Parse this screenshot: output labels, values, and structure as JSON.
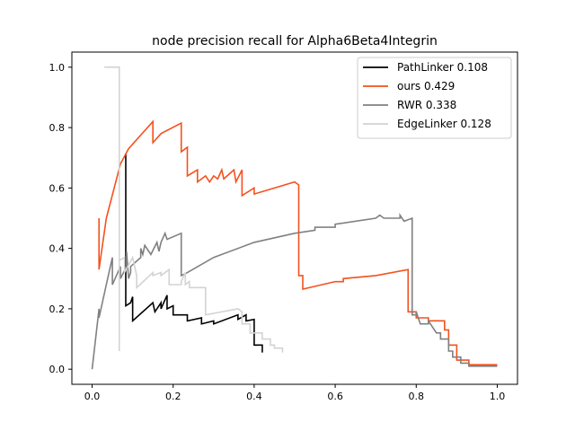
{
  "chart_data": {
    "type": "line",
    "title": "node precision recall for Alpha6Beta4Integrin",
    "xlabel": "",
    "ylabel": "",
    "xlim": [
      -0.05,
      1.05
    ],
    "ylim": [
      -0.05,
      1.05
    ],
    "xticks": [
      "0.0",
      "0.2",
      "0.4",
      "0.6",
      "0.8",
      "1.0"
    ],
    "yticks": [
      "0.0",
      "0.2",
      "0.4",
      "0.6",
      "0.8",
      "1.0"
    ],
    "grid": false,
    "legend": "top-right",
    "series": [
      {
        "name": "PathLinker 0.108",
        "color": "#000000",
        "points": [
          [
            0.083,
            0.714
          ],
          [
            0.083,
            0.21
          ],
          [
            0.095,
            0.22
          ],
          [
            0.1,
            0.24
          ],
          [
            0.1,
            0.16
          ],
          [
            0.15,
            0.22
          ],
          [
            0.155,
            0.19
          ],
          [
            0.17,
            0.22
          ],
          [
            0.17,
            0.2
          ],
          [
            0.185,
            0.245
          ],
          [
            0.185,
            0.2
          ],
          [
            0.2,
            0.21
          ],
          [
            0.2,
            0.18
          ],
          [
            0.235,
            0.18
          ],
          [
            0.235,
            0.16
          ],
          [
            0.27,
            0.17
          ],
          [
            0.27,
            0.15
          ],
          [
            0.3,
            0.16
          ],
          [
            0.3,
            0.15
          ],
          [
            0.36,
            0.18
          ],
          [
            0.36,
            0.165
          ],
          [
            0.38,
            0.18
          ],
          [
            0.38,
            0.16
          ],
          [
            0.4,
            0.165
          ],
          [
            0.4,
            0.08
          ],
          [
            0.42,
            0.08
          ],
          [
            0.42,
            0.055
          ]
        ]
      },
      {
        "name": "ours 0.429",
        "color": "#f4511e",
        "points": [
          [
            0.017,
            0.5
          ],
          [
            0.017,
            0.33
          ],
          [
            0.035,
            0.5
          ],
          [
            0.07,
            0.68
          ],
          [
            0.09,
            0.73
          ],
          [
            0.15,
            0.82
          ],
          [
            0.15,
            0.75
          ],
          [
            0.17,
            0.78
          ],
          [
            0.22,
            0.815
          ],
          [
            0.22,
            0.72
          ],
          [
            0.235,
            0.735
          ],
          [
            0.235,
            0.64
          ],
          [
            0.26,
            0.66
          ],
          [
            0.26,
            0.62
          ],
          [
            0.28,
            0.64
          ],
          [
            0.29,
            0.62
          ],
          [
            0.3,
            0.64
          ],
          [
            0.31,
            0.63
          ],
          [
            0.32,
            0.66
          ],
          [
            0.325,
            0.63
          ],
          [
            0.35,
            0.66
          ],
          [
            0.355,
            0.62
          ],
          [
            0.37,
            0.66
          ],
          [
            0.37,
            0.575
          ],
          [
            0.4,
            0.6
          ],
          [
            0.4,
            0.58
          ],
          [
            0.45,
            0.6
          ],
          [
            0.5,
            0.62
          ],
          [
            0.51,
            0.61
          ],
          [
            0.51,
            0.31
          ],
          [
            0.52,
            0.31
          ],
          [
            0.52,
            0.265
          ],
          [
            0.6,
            0.29
          ],
          [
            0.62,
            0.29
          ],
          [
            0.62,
            0.3
          ],
          [
            0.7,
            0.31
          ],
          [
            0.78,
            0.33
          ],
          [
            0.78,
            0.19
          ],
          [
            0.8,
            0.19
          ],
          [
            0.8,
            0.17
          ],
          [
            0.83,
            0.17
          ],
          [
            0.83,
            0.16
          ],
          [
            0.87,
            0.16
          ],
          [
            0.87,
            0.13
          ],
          [
            0.88,
            0.13
          ],
          [
            0.88,
            0.08
          ],
          [
            0.9,
            0.08
          ],
          [
            0.9,
            0.03
          ],
          [
            0.93,
            0.03
          ],
          [
            0.93,
            0.015
          ],
          [
            1.0,
            0.015
          ]
        ]
      },
      {
        "name": "RWR 0.338",
        "color": "#808080",
        "points": [
          [
            0.0,
            0.0
          ],
          [
            0.017,
            0.2
          ],
          [
            0.017,
            0.17
          ],
          [
            0.035,
            0.28
          ],
          [
            0.05,
            0.37
          ],
          [
            0.05,
            0.28
          ],
          [
            0.07,
            0.34
          ],
          [
            0.07,
            0.3
          ],
          [
            0.085,
            0.34
          ],
          [
            0.085,
            0.39
          ],
          [
            0.09,
            0.3
          ],
          [
            0.095,
            0.32
          ],
          [
            0.095,
            0.34
          ],
          [
            0.12,
            0.37
          ],
          [
            0.12,
            0.4
          ],
          [
            0.125,
            0.38
          ],
          [
            0.13,
            0.41
          ],
          [
            0.145,
            0.38
          ],
          [
            0.16,
            0.42
          ],
          [
            0.165,
            0.39
          ],
          [
            0.17,
            0.42
          ],
          [
            0.18,
            0.45
          ],
          [
            0.185,
            0.43
          ],
          [
            0.22,
            0.45
          ],
          [
            0.22,
            0.31
          ],
          [
            0.235,
            0.32
          ],
          [
            0.3,
            0.37
          ],
          [
            0.4,
            0.42
          ],
          [
            0.5,
            0.45
          ],
          [
            0.55,
            0.46
          ],
          [
            0.55,
            0.47
          ],
          [
            0.6,
            0.47
          ],
          [
            0.6,
            0.48
          ],
          [
            0.7,
            0.5
          ],
          [
            0.71,
            0.51
          ],
          [
            0.72,
            0.5
          ],
          [
            0.76,
            0.5
          ],
          [
            0.76,
            0.51
          ],
          [
            0.77,
            0.49
          ],
          [
            0.79,
            0.5
          ],
          [
            0.79,
            0.18
          ],
          [
            0.8,
            0.18
          ],
          [
            0.8,
            0.19
          ],
          [
            0.81,
            0.15
          ],
          [
            0.83,
            0.15
          ],
          [
            0.83,
            0.16
          ],
          [
            0.85,
            0.12
          ],
          [
            0.86,
            0.12
          ],
          [
            0.86,
            0.1
          ],
          [
            0.88,
            0.1
          ],
          [
            0.88,
            0.06
          ],
          [
            0.89,
            0.06
          ],
          [
            0.89,
            0.04
          ],
          [
            0.91,
            0.04
          ],
          [
            0.91,
            0.02
          ],
          [
            0.93,
            0.02
          ],
          [
            0.93,
            0.01
          ],
          [
            0.97,
            0.01
          ],
          [
            1.0,
            0.01
          ]
        ]
      },
      {
        "name": "EdgeLinker 0.128",
        "color": "#d3d3d3",
        "points": [
          [
            0.03,
            1.0
          ],
          [
            0.067,
            1.0
          ],
          [
            0.067,
            0.06
          ],
          [
            0.067,
            0.36
          ],
          [
            0.08,
            0.37
          ],
          [
            0.08,
            0.32
          ],
          [
            0.1,
            0.37
          ],
          [
            0.11,
            0.31
          ],
          [
            0.11,
            0.27
          ],
          [
            0.15,
            0.32
          ],
          [
            0.15,
            0.31
          ],
          [
            0.17,
            0.32
          ],
          [
            0.17,
            0.31
          ],
          [
            0.19,
            0.33
          ],
          [
            0.19,
            0.28
          ],
          [
            0.22,
            0.28
          ],
          [
            0.22,
            0.29
          ],
          [
            0.23,
            0.32
          ],
          [
            0.23,
            0.28
          ],
          [
            0.24,
            0.29
          ],
          [
            0.24,
            0.27
          ],
          [
            0.28,
            0.27
          ],
          [
            0.28,
            0.18
          ],
          [
            0.32,
            0.19
          ],
          [
            0.36,
            0.2
          ],
          [
            0.37,
            0.19
          ],
          [
            0.37,
            0.15
          ],
          [
            0.39,
            0.15
          ],
          [
            0.39,
            0.12
          ],
          [
            0.4,
            0.12
          ],
          [
            0.42,
            0.12
          ],
          [
            0.42,
            0.1
          ],
          [
            0.44,
            0.1
          ],
          [
            0.44,
            0.08
          ],
          [
            0.45,
            0.08
          ],
          [
            0.45,
            0.07
          ],
          [
            0.47,
            0.07
          ],
          [
            0.47,
            0.055
          ]
        ]
      }
    ]
  }
}
